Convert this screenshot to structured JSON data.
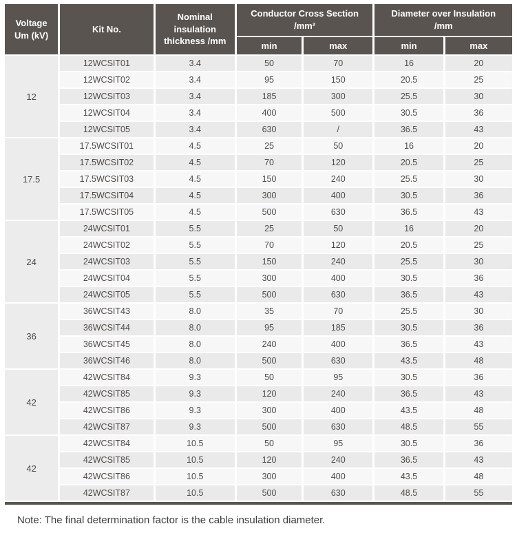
{
  "table": {
    "header": {
      "voltage_line1": "Voltage",
      "voltage_line2": "Um (kV)",
      "kit": "Kit No.",
      "nominal_line1": "Nominal insulation",
      "nominal_line2": "thickness /mm",
      "conductor_line1": "Conductor Cross Section",
      "conductor_line2": "/mm²",
      "diameter_line1": "Diameter over Insulation",
      "diameter_line2": "/mm",
      "min": "min",
      "max": "max"
    },
    "groups": [
      {
        "voltage": "12",
        "rows": [
          {
            "kit": "12WCSIT01",
            "thickness": "3.4",
            "ccs_min": "50",
            "ccs_max": "70",
            "dia_min": "16",
            "dia_max": "20"
          },
          {
            "kit": "12WCSIT02",
            "thickness": "3.4",
            "ccs_min": "95",
            "ccs_max": "150",
            "dia_min": "20.5",
            "dia_max": "25"
          },
          {
            "kit": "12WCSIT03",
            "thickness": "3.4",
            "ccs_min": "185",
            "ccs_max": "300",
            "dia_min": "25.5",
            "dia_max": "30"
          },
          {
            "kit": "12WCSIT04",
            "thickness": "3.4",
            "ccs_min": "400",
            "ccs_max": "500",
            "dia_min": "30.5",
            "dia_max": "36"
          },
          {
            "kit": "12WCSIT05",
            "thickness": "3.4",
            "ccs_min": "630",
            "ccs_max": "/",
            "dia_min": "36.5",
            "dia_max": "43"
          }
        ]
      },
      {
        "voltage": "17.5",
        "rows": [
          {
            "kit": "17.5WCSIT01",
            "thickness": "4.5",
            "ccs_min": "25",
            "ccs_max": "50",
            "dia_min": "16",
            "dia_max": "20"
          },
          {
            "kit": "17.5WCSIT02",
            "thickness": "4.5",
            "ccs_min": "70",
            "ccs_max": "120",
            "dia_min": "20.5",
            "dia_max": "25"
          },
          {
            "kit": "17.5WCSIT03",
            "thickness": "4.5",
            "ccs_min": "150",
            "ccs_max": "240",
            "dia_min": "25.5",
            "dia_max": "30"
          },
          {
            "kit": "17.5WCSIT04",
            "thickness": "4.5",
            "ccs_min": "300",
            "ccs_max": "400",
            "dia_min": "30.5",
            "dia_max": "36"
          },
          {
            "kit": "17.5WCSIT05",
            "thickness": "4.5",
            "ccs_min": "500",
            "ccs_max": "630",
            "dia_min": "36.5",
            "dia_max": "43"
          }
        ]
      },
      {
        "voltage": "24",
        "rows": [
          {
            "kit": "24WCSIT01",
            "thickness": "5.5",
            "ccs_min": "25",
            "ccs_max": "50",
            "dia_min": "16",
            "dia_max": "20"
          },
          {
            "kit": "24WCSIT02",
            "thickness": "5.5",
            "ccs_min": "70",
            "ccs_max": "120",
            "dia_min": "20.5",
            "dia_max": "25"
          },
          {
            "kit": "24WCSIT03",
            "thickness": "5.5",
            "ccs_min": "150",
            "ccs_max": "240",
            "dia_min": "25.5",
            "dia_max": "30"
          },
          {
            "kit": "24WCSIT04",
            "thickness": "5.5",
            "ccs_min": "300",
            "ccs_max": "400",
            "dia_min": "30.5",
            "dia_max": "36"
          },
          {
            "kit": "24WCSIT05",
            "thickness": "5.5",
            "ccs_min": "500",
            "ccs_max": "630",
            "dia_min": "36.5",
            "dia_max": "43"
          }
        ]
      },
      {
        "voltage": "36",
        "rows": [
          {
            "kit": "36WCSIT43",
            "thickness": "8.0",
            "ccs_min": "35",
            "ccs_max": "70",
            "dia_min": "25.5",
            "dia_max": "30"
          },
          {
            "kit": "36WCSIT44",
            "thickness": "8.0",
            "ccs_min": "95",
            "ccs_max": "185",
            "dia_min": "30.5",
            "dia_max": "36"
          },
          {
            "kit": "36WCSIT45",
            "thickness": "8.0",
            "ccs_min": "240",
            "ccs_max": "400",
            "dia_min": "36.5",
            "dia_max": "43"
          },
          {
            "kit": "36WCSIT46",
            "thickness": "8.0",
            "ccs_min": "500",
            "ccs_max": "630",
            "dia_min": "43.5",
            "dia_max": "48"
          }
        ]
      },
      {
        "voltage": "42",
        "rows": [
          {
            "kit": "42WCSIT84",
            "thickness": "9.3",
            "ccs_min": "50",
            "ccs_max": "95",
            "dia_min": "30.5",
            "dia_max": "36"
          },
          {
            "kit": "42WCSIT85",
            "thickness": "9.3",
            "ccs_min": "120",
            "ccs_max": "240",
            "dia_min": "36.5",
            "dia_max": "43"
          },
          {
            "kit": "42WCSIT86",
            "thickness": "9.3",
            "ccs_min": "300",
            "ccs_max": "400",
            "dia_min": "43.5",
            "dia_max": "48"
          },
          {
            "kit": "42WCSIT87",
            "thickness": "9.3",
            "ccs_min": "500",
            "ccs_max": "630",
            "dia_min": "48.5",
            "dia_max": "55"
          }
        ]
      },
      {
        "voltage": "42",
        "rows": [
          {
            "kit": "42WCSIT84",
            "thickness": "10.5",
            "ccs_min": "50",
            "ccs_max": "95",
            "dia_min": "30.5",
            "dia_max": "36"
          },
          {
            "kit": "42WCSIT85",
            "thickness": "10.5",
            "ccs_min": "120",
            "ccs_max": "240",
            "dia_min": "36.5",
            "dia_max": "43"
          },
          {
            "kit": "42WCSIT86",
            "thickness": "10.5",
            "ccs_min": "300",
            "ccs_max": "400",
            "dia_min": "43.5",
            "dia_max": "48"
          },
          {
            "kit": "42WCSIT87",
            "thickness": "10.5",
            "ccs_min": "500",
            "ccs_max": "630",
            "dia_min": "48.5",
            "dia_max": "55"
          }
        ]
      }
    ]
  },
  "note": "Note: The final determination factor is the cable insulation diameter.",
  "colors": {
    "header_bg": "#59544f",
    "row_odd_bg": "#eaeaea",
    "row_even_bg": "#f7f7f7",
    "voltage_cell_bg": "#ececec",
    "header_text": "#ffffff",
    "body_text": "#4e4a47",
    "bottom_bar": "#59544f",
    "note_text": "#3c3c3c"
  }
}
